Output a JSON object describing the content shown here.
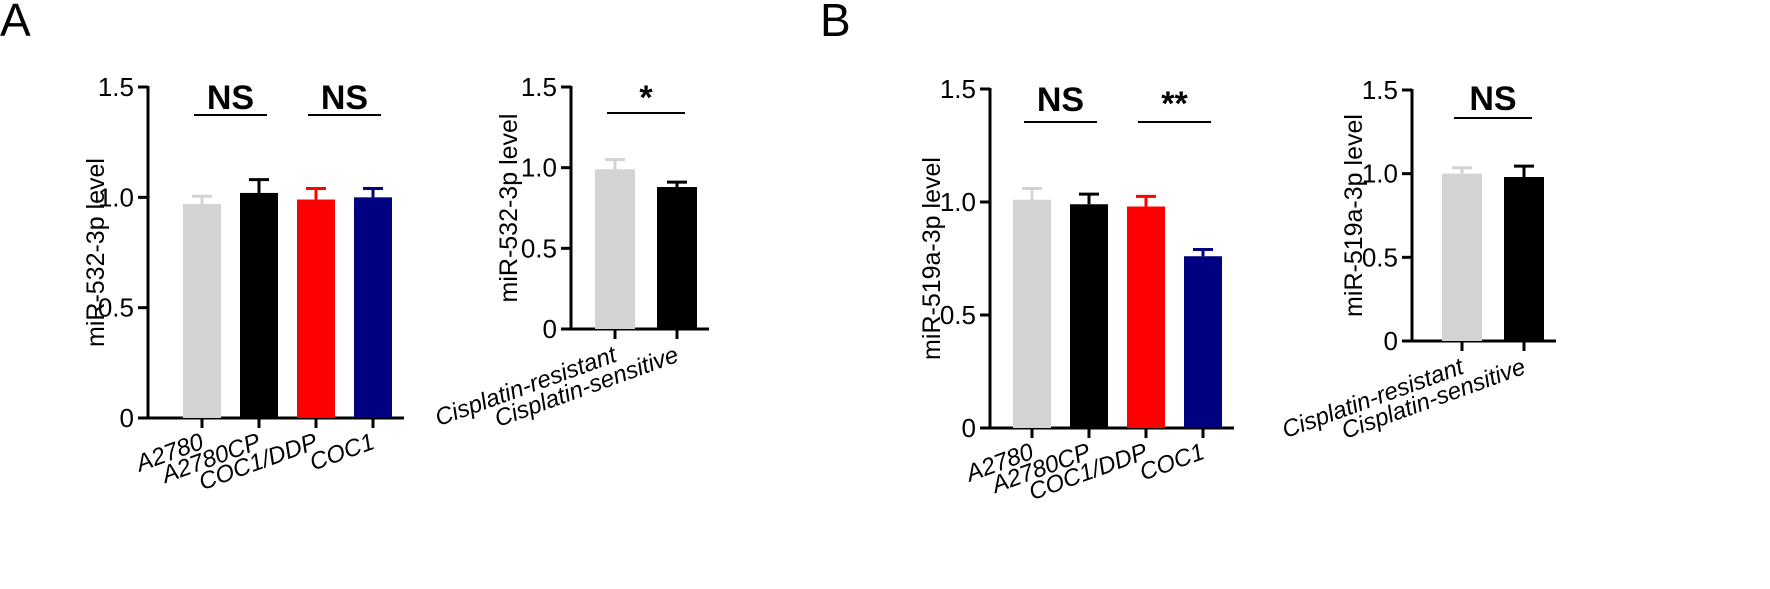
{
  "panels": [
    {
      "label": "A"
    },
    {
      "label": "B"
    }
  ],
  "chart_data": [
    {
      "type": "bar",
      "panel": "A",
      "ylabel": "miR-532-3p level",
      "ylim": [
        0,
        1.5
      ],
      "yticks": [
        "0",
        "0.5",
        "1.0",
        "1.5"
      ],
      "categories": [
        "A2780",
        "A2780CP",
        "COC1/DDP",
        "COC1"
      ],
      "values": [
        0.97,
        1.02,
        0.99,
        1.0
      ],
      "errors": [
        0.035,
        0.06,
        0.05,
        0.04
      ],
      "colors": [
        "#d3d3d3",
        "#000000",
        "#ff0000",
        "#000080"
      ],
      "annotations": [
        {
          "text": "NS",
          "from": 0,
          "to": 1
        },
        {
          "text": "NS",
          "from": 2,
          "to": 3
        }
      ]
    },
    {
      "type": "bar",
      "panel": "A",
      "ylabel": "miR-532-3p level",
      "ylim": [
        0,
        1.5
      ],
      "yticks": [
        "0",
        "0.5",
        "1.0",
        "1.5"
      ],
      "categories": [
        "Cisplatin-resistant",
        "Cisplatin-sensitive"
      ],
      "values": [
        0.99,
        0.88
      ],
      "errors": [
        0.06,
        0.03
      ],
      "colors": [
        "#d3d3d3",
        "#000000"
      ],
      "annotations": [
        {
          "text": "*",
          "from": 0,
          "to": 1
        }
      ]
    },
    {
      "type": "bar",
      "panel": "B",
      "ylabel": "miR-519a-3p level",
      "ylim": [
        0,
        1.5
      ],
      "yticks": [
        "0",
        "0.5",
        "1.0",
        "1.5"
      ],
      "categories": [
        "A2780",
        "A2780CP",
        "COC1/DDP",
        "COC1"
      ],
      "values": [
        1.01,
        0.99,
        0.98,
        0.76
      ],
      "errors": [
        0.05,
        0.045,
        0.045,
        0.03
      ],
      "colors": [
        "#d3d3d3",
        "#000000",
        "#ff0000",
        "#000080"
      ],
      "annotations": [
        {
          "text": "NS",
          "from": 0,
          "to": 1
        },
        {
          "text": "**",
          "from": 2,
          "to": 3
        }
      ]
    },
    {
      "type": "bar",
      "panel": "B",
      "ylabel": "miR-519a-3p level",
      "ylim": [
        0,
        1.5
      ],
      "yticks": [
        "0",
        "0.5",
        "1.0",
        "1.5"
      ],
      "categories": [
        "Cisplatin-resistant",
        "Cisplatin-sensitive"
      ],
      "values": [
        1.0,
        0.98
      ],
      "errors": [
        0.035,
        0.065
      ],
      "colors": [
        "#d3d3d3",
        "#000000"
      ],
      "annotations": [
        {
          "text": "NS",
          "from": 0,
          "to": 1
        }
      ]
    }
  ]
}
